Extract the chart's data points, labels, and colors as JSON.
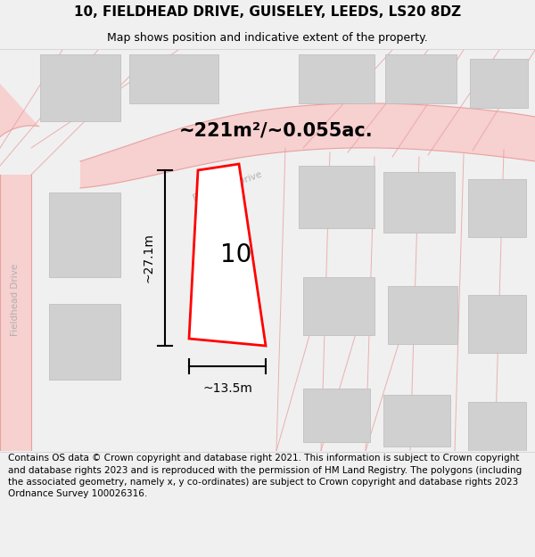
{
  "title": "10, FIELDHEAD DRIVE, GUISELEY, LEEDS, LS20 8DZ",
  "subtitle": "Map shows position and indicative extent of the property.",
  "footer": "Contains OS data © Crown copyright and database right 2021. This information is subject to Crown copyright and database rights 2023 and is reproduced with the permission of HM Land Registry. The polygons (including the associated geometry, namely x, y co-ordinates) are subject to Crown copyright and database rights 2023 Ordnance Survey 100026316.",
  "area_label": "~221m²/~0.055ac.",
  "number_label": "10",
  "dim_vertical": "~27.1m",
  "dim_horizontal": "~13.5m",
  "bg_color": "#f0f0f0",
  "map_bg": "#ffffff",
  "road_fill": "#f7d0d0",
  "road_line": "#e8a0a0",
  "building_fill": "#d0d0d0",
  "building_edge": "#bbbbbb",
  "plot_fill": "#ffffff",
  "plot_edge": "#ff0000",
  "road_label_color": "#b0b0b0",
  "title_fontsize": 11,
  "subtitle_fontsize": 9,
  "footer_fontsize": 7.5,
  "dim_fontsize": 10,
  "area_fontsize": 15,
  "number_fontsize": 20
}
